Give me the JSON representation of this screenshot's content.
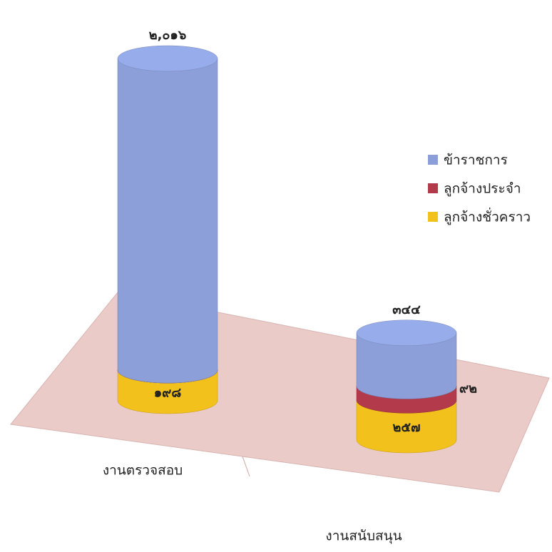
{
  "chart_data": {
    "type": "bar3d-stacked-cylinder",
    "categories": [
      "งานตรวจสอบ",
      "งานสนับสนุน"
    ],
    "series": [
      {
        "name": "ข้าราชการ",
        "color": "#8c9fd9",
        "values": [
          2016,
          344
        ],
        "value_labels": [
          "๒,๐๑๖",
          "๓๔๔"
        ]
      },
      {
        "name": "ลูกจ้างประจำ",
        "color": "#b23a4a",
        "values": [
          0,
          92
        ],
        "value_labels": [
          null,
          "๙๒"
        ]
      },
      {
        "name": "ลูกจ้างชั่วคราว",
        "color": "#f3c11c",
        "values": [
          198,
          257
        ],
        "value_labels": [
          "๑๙๘",
          "๒๕๗"
        ]
      }
    ],
    "legend": "right"
  }
}
